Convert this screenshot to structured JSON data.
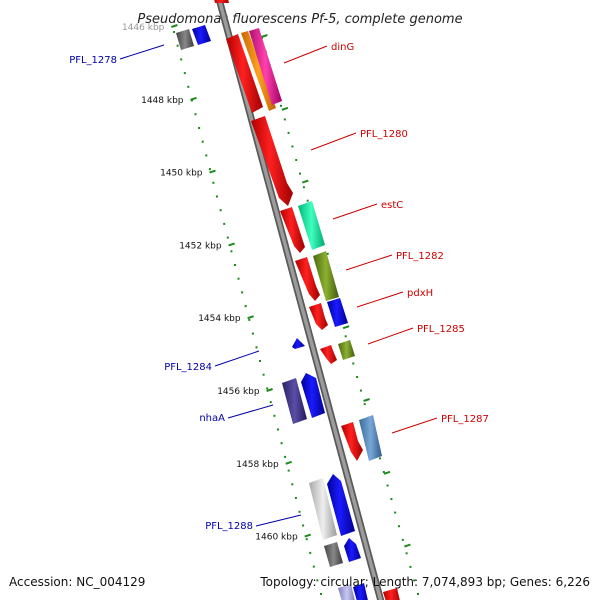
{
  "title": "Pseudomonas fluorescens Pf-5, complete genome",
  "footer": {
    "accession": "Accession: NC_004129",
    "topology": "Topology: circular; Length: 7,074,893 bp; Genes: 6,226"
  },
  "colors": {
    "backbone": "#8a8a8a",
    "dots": "#1a8a1a",
    "label_forward": "#cc0000",
    "label_reverse": "#0000aa"
  },
  "axis": {
    "unit": "kbp",
    "ticks": [
      {
        "label": "1446 kbp",
        "kbp": 1446
      },
      {
        "label": "1448 kbp",
        "kbp": 1448
      },
      {
        "label": "1450 kbp",
        "kbp": 1450
      },
      {
        "label": "1452 kbp",
        "kbp": 1452
      },
      {
        "label": "1454 kbp",
        "kbp": 1454
      },
      {
        "label": "1456 kbp",
        "kbp": 1456
      },
      {
        "label": "1458 kbp",
        "kbp": 1458
      },
      {
        "label": "1460 kbp",
        "kbp": 1460
      }
    ]
  },
  "gene_labels": [
    {
      "name": "dinG",
      "strand": "forward"
    },
    {
      "name": "PFL_1280",
      "strand": "forward"
    },
    {
      "name": "estC",
      "strand": "forward"
    },
    {
      "name": "PFL_1282",
      "strand": "forward"
    },
    {
      "name": "pdxH",
      "strand": "forward"
    },
    {
      "name": "PFL_1285",
      "strand": "forward"
    },
    {
      "name": "PFL_1287",
      "strand": "forward"
    },
    {
      "name": "PFL_1278",
      "strand": "reverse"
    },
    {
      "name": "PFL_1284",
      "strand": "reverse"
    },
    {
      "name": "nhaA",
      "strand": "reverse"
    },
    {
      "name": "PFL_1288",
      "strand": "reverse"
    }
  ]
}
